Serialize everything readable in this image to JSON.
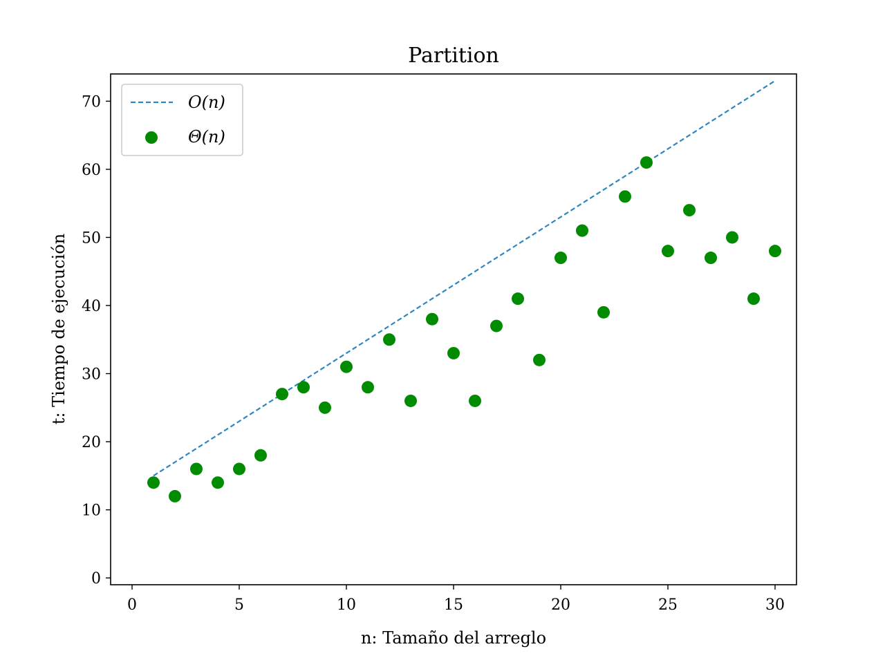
{
  "chart_data": {
    "type": "scatter",
    "title": "Partition",
    "xlabel": "n: Tamaño del arreglo",
    "ylabel": "t: Tiempo de ejecución",
    "xlim": [
      -1,
      31
    ],
    "ylim": [
      -1,
      74
    ],
    "xticks": [
      0,
      5,
      10,
      15,
      20,
      25,
      30
    ],
    "yticks": [
      0,
      10,
      20,
      30,
      40,
      50,
      60,
      70
    ],
    "legend": "top-left",
    "grid": false,
    "series": [
      {
        "name": "O(n)",
        "kind": "line",
        "style": "dashed",
        "color": "#2e86c1",
        "x": [
          1,
          30
        ],
        "y": [
          15,
          73
        ]
      },
      {
        "name": "Θ(n)",
        "kind": "scatter",
        "color": "#008b00",
        "x": [
          1,
          2,
          3,
          4,
          5,
          6,
          7,
          8,
          9,
          10,
          11,
          12,
          13,
          14,
          15,
          16,
          17,
          18,
          19,
          20,
          21,
          22,
          23,
          24,
          25,
          26,
          27,
          28,
          29,
          30
        ],
        "y": [
          14,
          12,
          16,
          14,
          16,
          18,
          27,
          28,
          25,
          31,
          28,
          35,
          26,
          38,
          33,
          26,
          37,
          41,
          32,
          47,
          51,
          39,
          56,
          61,
          48,
          54,
          47,
          50,
          41,
          48
        ]
      }
    ]
  }
}
